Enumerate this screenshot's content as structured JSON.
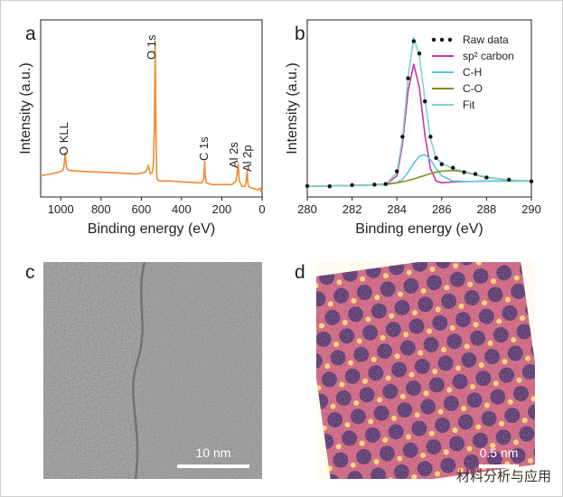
{
  "chart_data": [
    {
      "type": "line",
      "label": "a",
      "xlabel": "Binding energy (eV)",
      "ylabel": "Intensity (a.u.)",
      "x": [
        1100,
        1050,
        1010,
        990,
        985,
        980,
        978,
        975,
        970,
        960,
        900,
        800,
        700,
        620,
        580,
        570,
        565,
        560,
        555,
        545,
        540,
        535,
        531,
        527,
        523,
        520,
        510,
        450,
        400,
        300,
        290,
        287,
        285,
        282,
        278,
        250,
        200,
        150,
        130,
        125,
        122,
        119,
        116,
        113,
        100,
        85,
        80,
        76,
        74,
        72,
        68,
        50,
        20,
        10,
        5,
        0
      ],
      "series": [
        {
          "color": "#f28a30",
          "values": [
            12,
            13,
            14,
            15,
            17,
            22,
            25,
            20,
            16,
            15,
            14.5,
            14,
            13.5,
            13,
            14,
            16,
            18,
            15,
            13,
            14,
            18,
            40,
            86,
            35,
            12,
            10,
            9,
            9,
            8.5,
            8,
            10,
            16,
            20,
            12,
            8,
            7,
            7,
            7,
            9,
            12,
            15,
            19,
            14,
            9,
            6,
            6,
            8,
            12,
            15,
            10,
            6,
            5,
            4,
            5,
            3,
            4
          ]
        }
      ],
      "xlim": [
        1100,
        0
      ],
      "xticks": [
        1000,
        800,
        600,
        400,
        200,
        0
      ],
      "ylim": [
        0,
        100
      ],
      "annotations": [
        "O KLL",
        "O 1s",
        "C 1s",
        "Al 2s",
        "Al 2p"
      ]
    },
    {
      "type": "line",
      "label": "b",
      "xlabel": "Binding energy (eV)",
      "ylabel": "Intensity (a.u.)",
      "x": [
        280,
        281,
        282,
        283,
        283.5,
        284,
        284.25,
        284.5,
        284.75,
        285,
        285.25,
        285.5,
        285.75,
        286,
        286.5,
        287,
        287.5,
        288,
        289,
        290
      ],
      "series": [
        {
          "name": "Raw data",
          "color": "#111111",
          "marker": "dot",
          "values": [
            6.2,
            6,
            6.7,
            7,
            7.3,
            14.5,
            34,
            67,
            88,
            81,
            54,
            34,
            22,
            18.5,
            16.5,
            14,
            13,
            11,
            9.8,
            8.8
          ]
        },
        {
          "name": "sp² carbon",
          "color": "#c8379e",
          "values": [
            6,
            6.2,
            6.5,
            6.8,
            7,
            12,
            30,
            60,
            75,
            62,
            35,
            16,
            9,
            8,
            8.5,
            8.7,
            8.8,
            9,
            9,
            9
          ]
        },
        {
          "name": "C-H",
          "color": "#55c8e0",
          "values": [
            6,
            6.2,
            6.5,
            6.8,
            7,
            8,
            10,
            14,
            19,
            23,
            24,
            21,
            16,
            12,
            9,
            8.8,
            8.8,
            9,
            9,
            9
          ]
        },
        {
          "name": "C-O",
          "color": "#8b8b1a",
          "values": [
            6,
            6.2,
            6.5,
            6.9,
            7.3,
            8,
            8.6,
            9.3,
            10.2,
            11.2,
            12.2,
            13.2,
            14,
            14.6,
            15,
            14.2,
            12.5,
            11,
            9.5,
            9
          ]
        },
        {
          "name": "Fit",
          "color": "#7fd3d0",
          "values": [
            6,
            6.2,
            6.5,
            6.8,
            7,
            14,
            33,
            68,
            90,
            80,
            55,
            33,
            22,
            19,
            16,
            14.5,
            12.8,
            11.2,
            9.6,
            9
          ]
        }
      ],
      "xlim": [
        280,
        290
      ],
      "xticks": [
        280,
        282,
        284,
        286,
        288,
        290
      ],
      "ylim": [
        0,
        100
      ]
    }
  ],
  "images": [
    {
      "label": "c",
      "scale_bar": "10 nm"
    },
    {
      "label": "d",
      "scale_bar": "0.5 nm"
    }
  ],
  "watermark": "材料分析与应用"
}
